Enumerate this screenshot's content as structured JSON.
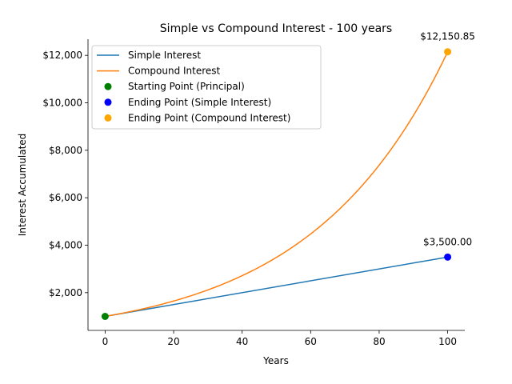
{
  "chart_data": {
    "type": "line",
    "title": "Simple vs Compound Interest - 100 years",
    "xlabel": "Years",
    "ylabel": "Interest Accumulated",
    "xlim": [
      -5,
      105
    ],
    "ylim": [
      410,
      12680
    ],
    "xticks": [
      0,
      20,
      40,
      60,
      80,
      100
    ],
    "xtick_labels": [
      "0",
      "20",
      "40",
      "60",
      "80",
      "100"
    ],
    "yticks": [
      2000,
      4000,
      6000,
      8000,
      10000,
      12000
    ],
    "ytick_labels": [
      "$2,000",
      "$4,000",
      "$6,000",
      "$8,000",
      "$10,000",
      "$12,000"
    ],
    "grid": false,
    "legend_position": "upper-left",
    "principal": 1000,
    "years": 100,
    "series": [
      {
        "name": "Simple Interest",
        "color": "#1f77b4",
        "x": [
          0,
          100
        ],
        "y": [
          1000,
          3500
        ]
      },
      {
        "name": "Compound Interest",
        "color": "#ff7f0e",
        "x": [
          0,
          10,
          20,
          30,
          40,
          50,
          60,
          70,
          80,
          90,
          100
        ],
        "y": [
          1000,
          1284,
          1649,
          2117,
          2718,
          3490,
          4482,
          5755,
          7390,
          9490,
          12150.85
        ]
      }
    ],
    "points": [
      {
        "name": "Starting Point (Principal)",
        "color": "#008000",
        "x": 0,
        "y": 1000
      },
      {
        "name": "Ending Point (Simple Interest)",
        "color": "#0000ff",
        "x": 100,
        "y": 3500
      },
      {
        "name": "Ending Point (Compound Interest)",
        "color": "#ffa500",
        "x": 100,
        "y": 12150.85
      }
    ],
    "annotations": [
      {
        "text": "$12,150.85",
        "x": 100,
        "y": 12150.85
      },
      {
        "text": "$3,500.00",
        "x": 100,
        "y": 3500
      }
    ]
  }
}
